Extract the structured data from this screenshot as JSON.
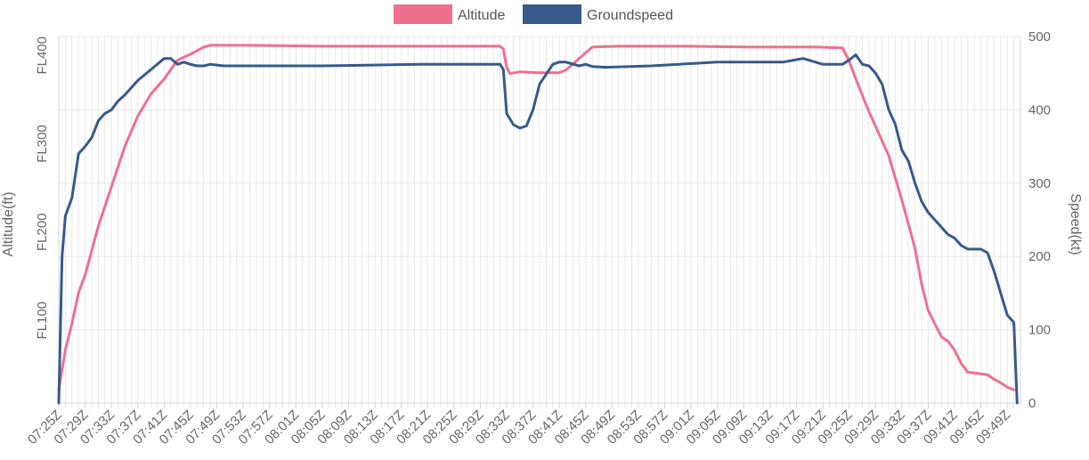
{
  "chart_data": {
    "type": "line",
    "legend_position": "top-center",
    "grid": true,
    "series": [
      {
        "name": "Altitude",
        "axis": "left",
        "color": "#f06f8f",
        "x": [
          "07:25Z",
          "07:26Z",
          "07:27Z",
          "07:28Z",
          "07:29Z",
          "07:31Z",
          "07:33Z",
          "07:35Z",
          "07:37Z",
          "07:39Z",
          "07:41Z",
          "07:43Z",
          "07:45Z",
          "07:47Z",
          "07:48Z",
          "07:53Z",
          "08:05Z",
          "08:20Z",
          "08:32Z",
          "08:32.5Z",
          "08:33Z",
          "08:33.5Z",
          "08:35Z",
          "08:38Z",
          "08:41Z",
          "08:42Z",
          "08:44Z",
          "08:46Z",
          "08:50Z",
          "09:00Z",
          "09:10Z",
          "09:20Z",
          "09:24Z",
          "09:25Z",
          "09:26Z",
          "09:28Z",
          "09:31Z",
          "09:33Z",
          "09:35Z",
          "09:36Z",
          "09:37Z",
          "09:38Z",
          "09:39Z",
          "09:40Z",
          "09:41Z",
          "09:42Z",
          "09:43Z",
          "09:44Z",
          "09:45Z",
          "09:46Z",
          "09:47Z",
          "09:48Z",
          "09:49Z",
          "09:50Z"
        ],
        "values": [
          0,
          45,
          75,
          110,
          130,
          185,
          230,
          275,
          310,
          335,
          352,
          373,
          380,
          388,
          390,
          390,
          389,
          389,
          389,
          386,
          365,
          358,
          360,
          359,
          359,
          362,
          375,
          388,
          389,
          389,
          388,
          388,
          387,
          372,
          352,
          315,
          265,
          215,
          160,
          120,
          90,
          75,
          60,
          55,
          45,
          30,
          20,
          19,
          18,
          17,
          12,
          8,
          3,
          0
        ]
      },
      {
        "name": "Groundspeed",
        "axis": "right",
        "color": "#375a8a",
        "x": [
          "07:25Z",
          "07:25.5Z",
          "07:26Z",
          "07:27Z",
          "07:28Z",
          "07:29Z",
          "07:30Z",
          "07:31Z",
          "07:32Z",
          "07:33Z",
          "07:34Z",
          "07:35Z",
          "07:37Z",
          "07:39Z",
          "07:41Z",
          "07:42Z",
          "07:43Z",
          "07:44Z",
          "07:45Z",
          "07:46Z",
          "07:47Z",
          "07:48Z",
          "07:50Z",
          "07:53Z",
          "08:05Z",
          "08:20Z",
          "08:32Z",
          "08:32.5Z",
          "08:33Z",
          "08:34Z",
          "08:35Z",
          "08:36Z",
          "08:37Z",
          "08:38Z",
          "08:40Z",
          "08:41Z",
          "08:42Z",
          "08:44Z",
          "08:45Z",
          "08:46Z",
          "08:48Z",
          "08:55Z",
          "09:05Z",
          "09:15Z",
          "09:18Z",
          "09:21Z",
          "09:24Z",
          "09:25Z",
          "09:26Z",
          "09:27Z",
          "09:28Z",
          "09:29Z",
          "09:30Z",
          "09:31Z",
          "09:32Z",
          "09:33Z",
          "09:34Z",
          "09:35Z",
          "09:36Z",
          "09:37Z",
          "09:38Z",
          "09:39Z",
          "09:40Z",
          "09:41Z",
          "09:42Z",
          "09:43Z",
          "09:44Z",
          "09:45Z",
          "09:46Z",
          "09:47Z",
          "09:48Z",
          "09:49Z",
          "09:50Z",
          "09:50.5Z"
        ],
        "values": [
          0,
          200,
          255,
          280,
          340,
          350,
          362,
          385,
          395,
          400,
          412,
          420,
          440,
          455,
          470,
          470,
          462,
          465,
          462,
          460,
          460,
          462,
          460,
          460,
          460,
          462,
          462,
          455,
          395,
          380,
          375,
          378,
          400,
          435,
          462,
          465,
          465,
          460,
          462,
          459,
          458,
          460,
          465,
          465,
          470,
          462,
          462,
          468,
          475,
          462,
          460,
          450,
          435,
          400,
          380,
          345,
          330,
          300,
          275,
          260,
          250,
          240,
          230,
          225,
          215,
          210,
          210,
          210,
          205,
          180,
          150,
          120,
          110,
          0
        ]
      }
    ],
    "y_left": {
      "title": "Altitude(ft)",
      "ylim": [
        -15,
        400
      ],
      "ticks": [
        100,
        200,
        300,
        400
      ],
      "tick_labels": [
        "FL100",
        "FL200",
        "FL300",
        "FL400"
      ]
    },
    "y_right": {
      "title": "Speed(kt)",
      "ylim": [
        0,
        500
      ],
      "ticks": [
        0,
        100,
        200,
        300,
        400,
        500
      ],
      "tick_labels": [
        "0",
        "100",
        "200",
        "300",
        "400",
        "500"
      ]
    },
    "x_axis": {
      "start": "07:25Z",
      "end": "09:51Z",
      "tick_labels": [
        "07:25Z",
        "07:29Z",
        "07:33Z",
        "07:37Z",
        "07:41Z",
        "07:45Z",
        "07:49Z",
        "07:53Z",
        "07:57Z",
        "08:01Z",
        "08:05Z",
        "08:09Z",
        "08:13Z",
        "08:17Z",
        "08:21Z",
        "08:25Z",
        "08:29Z",
        "08:33Z",
        "08:37Z",
        "08:41Z",
        "08:45Z",
        "08:49Z",
        "08:53Z",
        "08:57Z",
        "09:01Z",
        "09:05Z",
        "09:09Z",
        "09:13Z",
        "09:17Z",
        "09:21Z",
        "09:25Z",
        "09:29Z",
        "09:33Z",
        "09:37Z",
        "09:41Z",
        "09:45Z",
        "09:49Z"
      ]
    }
  }
}
